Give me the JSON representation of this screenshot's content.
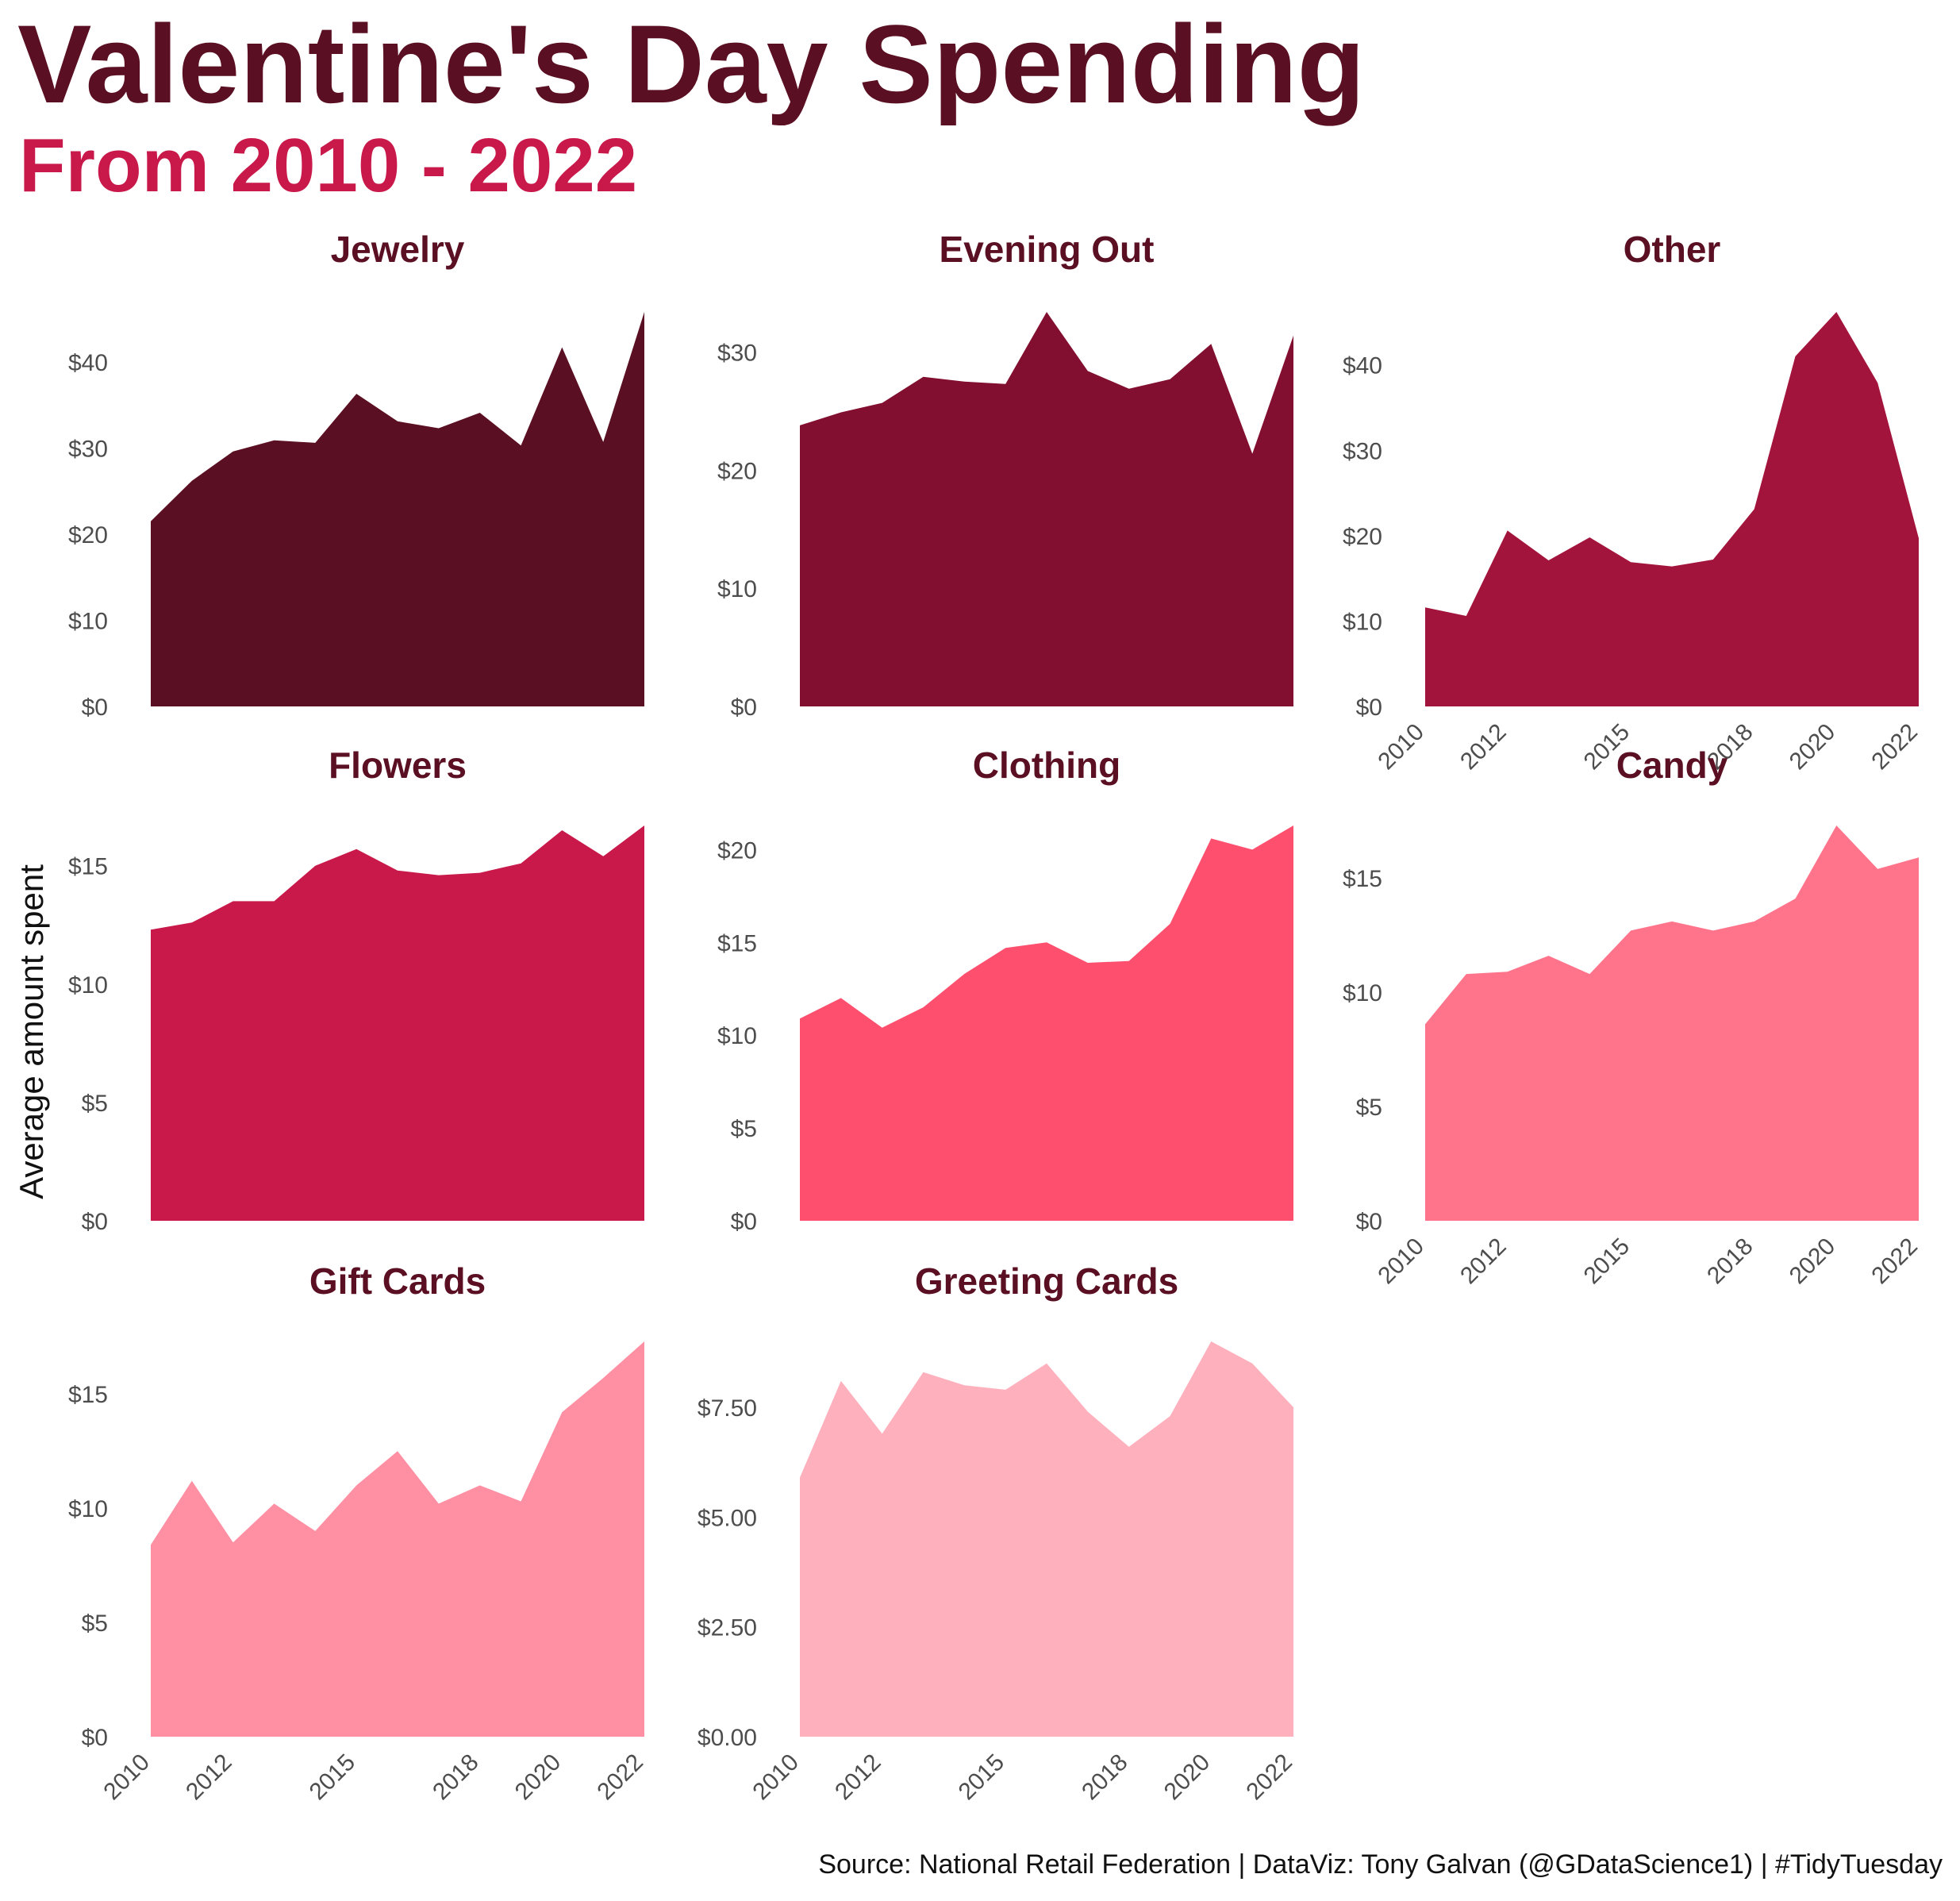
{
  "header": {
    "title": "Valentine's Day Spending",
    "subtitle": "From 2010 - 2022"
  },
  "axis": {
    "ylabel": "Average amount spent"
  },
  "caption": "Source: National Retail Federation  |  DataViz: Tony Galvan (@GDataScience1)  |  #TidyTuesday",
  "chart_data": {
    "type": "area",
    "x": [
      2010,
      2011,
      2012,
      2013,
      2014,
      2015,
      2016,
      2017,
      2018,
      2019,
      2020,
      2021,
      2022
    ],
    "xticks": [
      "2010",
      "2012",
      "2015",
      "2018",
      "2020",
      "2022"
    ],
    "xticks_values": [
      2010,
      2012,
      2015,
      2018,
      2020,
      2022
    ],
    "ylabel": "Average amount spent",
    "grid": false,
    "facets": [
      {
        "name": "Jewelry",
        "color": "#5a0f22",
        "values": [
          21.5,
          26.2,
          29.6,
          30.9,
          30.6,
          36.3,
          33.1,
          32.3,
          34.1,
          30.3,
          41.7,
          30.7,
          45.8
        ],
        "ylim": [
          0,
          45.8
        ],
        "yticks": [
          0,
          10,
          20,
          30,
          40
        ],
        "yticklabels": [
          "$0",
          "$10",
          "$20",
          "$30",
          "$40"
        ],
        "show_x": false
      },
      {
        "name": "Evening Out",
        "color": "#820f30",
        "values": [
          23.8,
          24.9,
          25.7,
          27.9,
          27.5,
          27.3,
          33.4,
          28.4,
          26.9,
          27.7,
          30.7,
          21.4,
          31.4
        ],
        "ylim": [
          0,
          33.4
        ],
        "yticks": [
          0,
          10,
          20,
          30
        ],
        "yticklabels": [
          "$0",
          "$10",
          "$20",
          "$30"
        ],
        "show_x": false
      },
      {
        "name": "Other",
        "color": "#a3143c",
        "values": [
          11.6,
          10.6,
          20.6,
          17.1,
          19.8,
          16.9,
          16.4,
          17.2,
          23.1,
          41.0,
          46.2,
          37.9,
          19.7
        ],
        "ylim": [
          0,
          46.2
        ],
        "yticks": [
          0,
          10,
          20,
          30,
          40
        ],
        "yticklabels": [
          "$0",
          "$10",
          "$20",
          "$30",
          "$40"
        ],
        "show_x": true
      },
      {
        "name": "Flowers",
        "color": "#c8194a",
        "values": [
          12.3,
          12.6,
          13.5,
          13.5,
          15.0,
          15.7,
          14.8,
          14.6,
          14.7,
          15.1,
          16.5,
          15.4,
          16.7
        ],
        "ylim": [
          0,
          16.7
        ],
        "yticks": [
          0,
          5,
          10,
          15
        ],
        "yticklabels": [
          "$0",
          "$5",
          "$10",
          "$15"
        ],
        "show_x": false
      },
      {
        "name": "Clothing",
        "color": "#ff4f6e",
        "values": [
          10.9,
          12.0,
          10.4,
          11.5,
          13.3,
          14.7,
          15.0,
          13.9,
          14.0,
          16.0,
          20.6,
          20.0,
          21.3
        ],
        "ylim": [
          0,
          21.3
        ],
        "yticks": [
          0,
          5,
          10,
          15,
          20
        ],
        "yticklabels": [
          "$0",
          "$5",
          "$10",
          "$15",
          "$20"
        ],
        "show_x": false
      },
      {
        "name": "Candy",
        "color": "#ff748b",
        "values": [
          8.6,
          10.8,
          10.9,
          11.6,
          10.8,
          12.7,
          13.1,
          12.7,
          13.1,
          14.1,
          17.3,
          15.4,
          15.9
        ],
        "ylim": [
          0,
          17.3
        ],
        "yticks": [
          0,
          5,
          10,
          15
        ],
        "yticklabels": [
          "$0",
          "$5",
          "$10",
          "$15"
        ],
        "show_x": true
      },
      {
        "name": "Gift Cards",
        "color": "#ff8fa3",
        "values": [
          8.4,
          11.2,
          8.5,
          10.2,
          9.0,
          11.0,
          12.5,
          10.2,
          11.0,
          10.3,
          14.2,
          15.7,
          17.3
        ],
        "ylim": [
          0,
          17.3
        ],
        "yticks": [
          0,
          5,
          10,
          15
        ],
        "yticklabels": [
          "$0",
          "$5",
          "$10",
          "$15"
        ],
        "show_x": true
      },
      {
        "name": "Greeting Cards",
        "color": "#ffb0bd",
        "values": [
          5.9,
          8.1,
          6.9,
          8.3,
          8.0,
          7.9,
          8.5,
          7.4,
          6.6,
          7.3,
          9.0,
          8.5,
          7.5
        ],
        "ylim": [
          0,
          9.0
        ],
        "yticks": [
          0,
          2.5,
          5,
          7.5
        ],
        "yticklabels": [
          "$0.00",
          "$2.50",
          "$5.00",
          "$7.50"
        ],
        "show_x": true
      }
    ]
  }
}
